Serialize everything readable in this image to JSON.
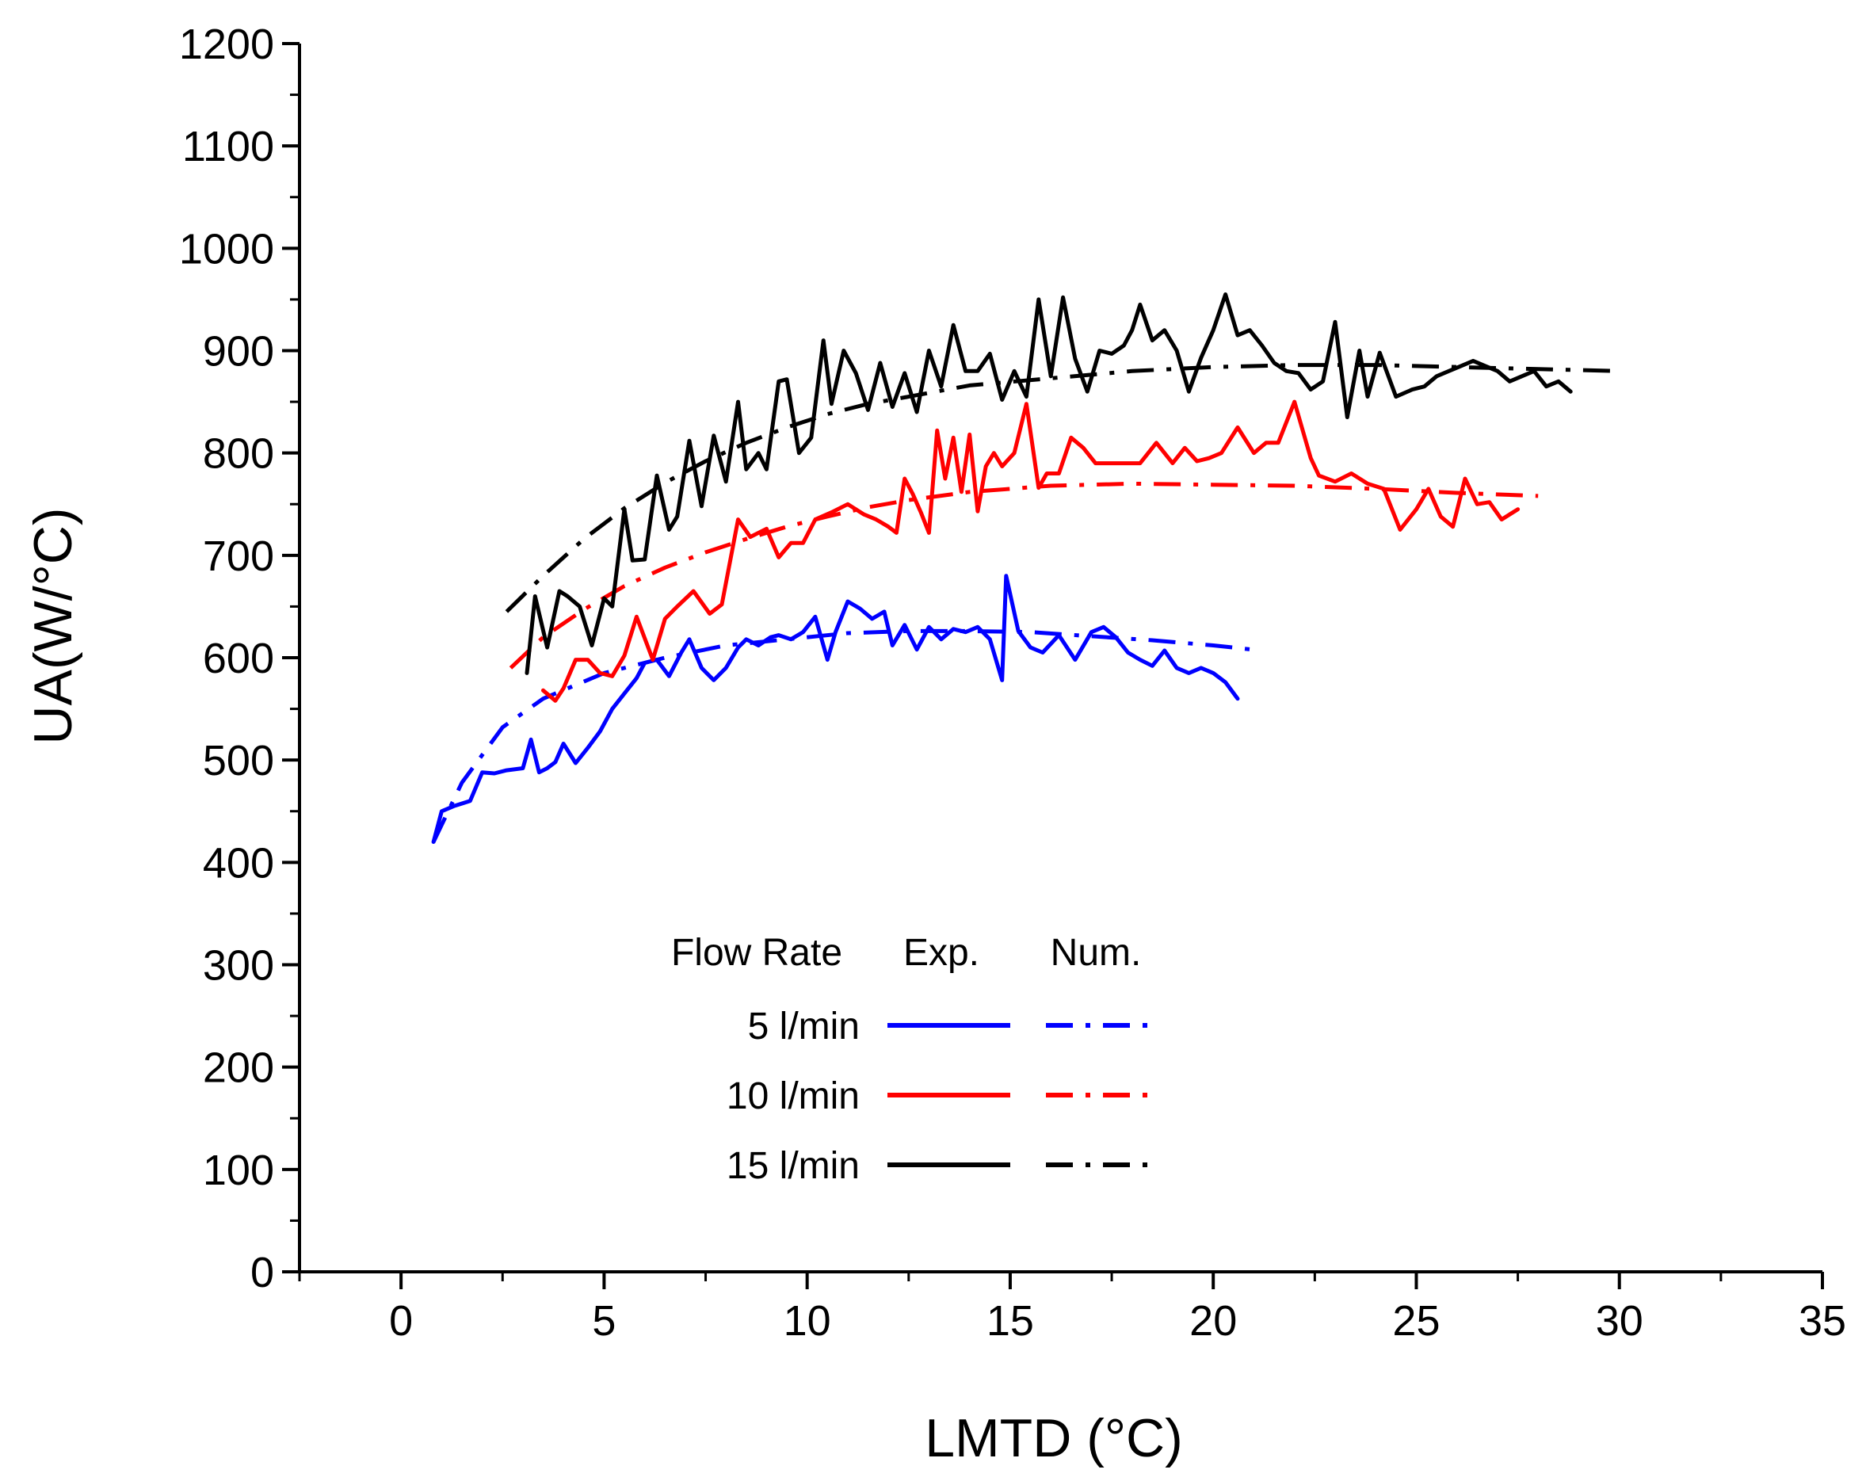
{
  "chart_data": {
    "type": "line",
    "xlabel": "LMTD (°C)",
    "ylabel": "UA(W/°C)",
    "xlim": [
      -2.5,
      35
    ],
    "ylim": [
      0,
      1200
    ],
    "x_ticks": [
      0,
      5,
      10,
      15,
      20,
      25,
      30,
      35
    ],
    "x_tick_labels": [
      "0",
      "5",
      "10",
      "15",
      "20",
      "25",
      "30",
      "35"
    ],
    "y_ticks": [
      0,
      100,
      200,
      300,
      400,
      500,
      600,
      700,
      800,
      900,
      1000,
      1100,
      1200
    ],
    "y_tick_labels": [
      "0",
      "100",
      "200",
      "300",
      "400",
      "500",
      "600",
      "700",
      "800",
      "900",
      "1000",
      "1100",
      "1200"
    ],
    "grid": false,
    "legend": {
      "placement": "bottom-center",
      "header": "Flow Rate",
      "col_exp": "Exp.",
      "col_num": "Num.",
      "rows": [
        {
          "label": "5 l/min",
          "color": "#0000ff"
        },
        {
          "label": "10 l/min",
          "color": "#ff0000"
        },
        {
          "label": "15 l/min",
          "color": "#000000"
        }
      ]
    },
    "series": [
      {
        "flow": "5 l/min",
        "kind": "Exp.",
        "style": "solid",
        "color": "#0000ff",
        "x": [
          0.8,
          1.0,
          1.3,
          1.7,
          2.0,
          2.3,
          2.6,
          3.0,
          3.2,
          3.4,
          3.6,
          3.8,
          4.0,
          4.3,
          4.6,
          4.9,
          5.2,
          5.5,
          5.8,
          6.0,
          6.3,
          6.6,
          6.9,
          7.1,
          7.4,
          7.7,
          8.0,
          8.3,
          8.5,
          8.8,
          9.1,
          9.3,
          9.6,
          9.9,
          10.2,
          10.5,
          10.7,
          11.0,
          11.3,
          11.6,
          11.9,
          12.1,
          12.4,
          12.7,
          13.0,
          13.3,
          13.6,
          13.9,
          14.2,
          14.5,
          14.8,
          14.9,
          15.2,
          15.5,
          15.8,
          16.2,
          16.6,
          17.0,
          17.3,
          17.6,
          17.9,
          18.2,
          18.5,
          18.8,
          19.1,
          19.4,
          19.7,
          20.0,
          20.3,
          20.6
        ],
        "y": [
          420,
          450,
          455,
          460,
          488,
          487,
          490,
          492,
          520,
          488,
          492,
          498,
          516,
          497,
          512,
          528,
          550,
          565,
          580,
          595,
          598,
          582,
          605,
          618,
          590,
          578,
          590,
          610,
          618,
          612,
          620,
          622,
          618,
          625,
          640,
          598,
          625,
          655,
          648,
          638,
          645,
          612,
          632,
          608,
          630,
          618,
          628,
          625,
          630,
          618,
          578,
          680,
          626,
          610,
          605,
          622,
          598,
          625,
          630,
          620,
          605,
          598,
          592,
          607,
          590,
          585,
          590,
          585,
          576,
          560
        ]
      },
      {
        "flow": "5 l/min",
        "kind": "Num.",
        "style": "dashdot",
        "color": "#0000ff",
        "x": [
          0.8,
          1.5,
          2.5,
          3.5,
          5.0,
          6.5,
          8.0,
          9.5,
          11.0,
          12.5,
          14.0,
          15.5,
          17.0,
          18.5,
          20.0,
          21.2
        ],
        "y": [
          420,
          478,
          532,
          560,
          585,
          600,
          612,
          618,
          624,
          626,
          626,
          625,
          621,
          617,
          612,
          607
        ]
      },
      {
        "flow": "10 l/min",
        "kind": "Exp.",
        "style": "solid",
        "color": "#ff0000",
        "x": [
          3.5,
          3.8,
          4.0,
          4.3,
          4.6,
          4.9,
          5.2,
          5.5,
          5.8,
          6.2,
          6.5,
          6.8,
          7.2,
          7.6,
          7.9,
          8.3,
          8.6,
          9.0,
          9.3,
          9.6,
          9.9,
          10.2,
          10.6,
          11.0,
          11.4,
          11.7,
          12.0,
          12.2,
          12.4,
          12.6,
          12.8,
          13.0,
          13.2,
          13.4,
          13.6,
          13.8,
          14.0,
          14.2,
          14.4,
          14.6,
          14.8,
          15.1,
          15.4,
          15.7,
          15.9,
          16.2,
          16.5,
          16.8,
          17.1,
          17.4,
          17.8,
          18.2,
          18.6,
          19.0,
          19.3,
          19.6,
          19.9,
          20.2,
          20.6,
          21.0,
          21.3,
          21.6,
          22.0,
          22.4,
          22.6,
          23.0,
          23.4,
          23.8,
          24.2,
          24.6,
          25.0,
          25.3,
          25.6,
          25.9,
          26.2,
          26.5,
          26.8,
          27.1,
          27.5
        ],
        "y": [
          568,
          558,
          570,
          598,
          598,
          585,
          582,
          602,
          640,
          598,
          638,
          650,
          665,
          643,
          652,
          735,
          718,
          726,
          698,
          712,
          712,
          735,
          742,
          750,
          740,
          735,
          728,
          722,
          775,
          760,
          742,
          722,
          822,
          775,
          815,
          762,
          818,
          743,
          787,
          800,
          787,
          800,
          848,
          766,
          780,
          780,
          815,
          805,
          790,
          790,
          790,
          790,
          810,
          790,
          805,
          792,
          795,
          800,
          825,
          800,
          810,
          810,
          850,
          795,
          778,
          772,
          780,
          770,
          765,
          725,
          745,
          765,
          738,
          728,
          775,
          750,
          752,
          735,
          745
        ]
      },
      {
        "flow": "10 l/min",
        "kind": "Num.",
        "style": "dashdot",
        "color": "#ff0000",
        "x": [
          2.7,
          3.5,
          4.5,
          5.5,
          6.5,
          7.5,
          8.5,
          9.5,
          10.5,
          11.5,
          12.5,
          14.0,
          16.0,
          18.0,
          20.0,
          22.0,
          24.0,
          26.0,
          28.0
        ],
        "y": [
          590,
          620,
          647,
          670,
          688,
          703,
          716,
          728,
          738,
          747,
          754,
          762,
          768,
          770,
          769,
          768,
          765,
          761,
          758
        ]
      },
      {
        "flow": "15 l/min",
        "kind": "Exp.",
        "style": "solid",
        "color": "#000000",
        "x": [
          3.1,
          3.3,
          3.6,
          3.9,
          4.1,
          4.4,
          4.7,
          5.0,
          5.2,
          5.5,
          5.7,
          6.0,
          6.3,
          6.6,
          6.8,
          7.1,
          7.4,
          7.7,
          8.0,
          8.3,
          8.5,
          8.8,
          9.0,
          9.3,
          9.5,
          9.8,
          10.1,
          10.4,
          10.6,
          10.9,
          11.2,
          11.5,
          11.8,
          12.1,
          12.4,
          12.7,
          13.0,
          13.3,
          13.6,
          13.9,
          14.2,
          14.5,
          14.8,
          15.1,
          15.4,
          15.7,
          16.0,
          16.3,
          16.6,
          16.9,
          17.2,
          17.5,
          17.8,
          18.0,
          18.2,
          18.5,
          18.8,
          19.1,
          19.4,
          19.7,
          20.0,
          20.3,
          20.6,
          20.9,
          21.2,
          21.5,
          21.8,
          22.1,
          22.4,
          22.7,
          23.0,
          23.3,
          23.6,
          23.8,
          24.1,
          24.5,
          24.9,
          25.2,
          25.5,
          25.8,
          26.1,
          26.4,
          26.7,
          27.0,
          27.3,
          27.6,
          27.9,
          28.2,
          28.5,
          28.8
        ],
        "y": [
          585,
          660,
          610,
          665,
          660,
          650,
          612,
          658,
          650,
          745,
          695,
          696,
          778,
          725,
          738,
          812,
          748,
          817,
          772,
          850,
          784,
          800,
          784,
          870,
          872,
          800,
          815,
          910,
          848,
          900,
          878,
          842,
          888,
          845,
          878,
          840,
          900,
          865,
          925,
          880,
          880,
          897,
          852,
          880,
          855,
          950,
          875,
          952,
          892,
          860,
          900,
          897,
          905,
          920,
          945,
          910,
          920,
          900,
          860,
          893,
          920,
          955,
          915,
          920,
          905,
          888,
          880,
          878,
          862,
          870,
          928,
          835,
          900,
          855,
          898,
          855,
          862,
          865,
          875,
          880,
          885,
          890,
          885,
          880,
          870,
          875,
          880,
          865,
          870,
          860
        ]
      },
      {
        "flow": "15 l/min",
        "kind": "Num.",
        "style": "dashdot",
        "color": "#000000",
        "x": [
          2.6,
          3.5,
          4.5,
          5.5,
          6.5,
          7.5,
          8.5,
          9.5,
          10.5,
          11.5,
          12.5,
          14.0,
          16.0,
          18.0,
          20.0,
          22.0,
          24.0,
          26.0,
          28.0,
          30.0
        ],
        "y": [
          645,
          680,
          716,
          746,
          771,
          792,
          810,
          825,
          838,
          848,
          855,
          866,
          873,
          880,
          884,
          886,
          886,
          884,
          882,
          880
        ]
      }
    ]
  }
}
